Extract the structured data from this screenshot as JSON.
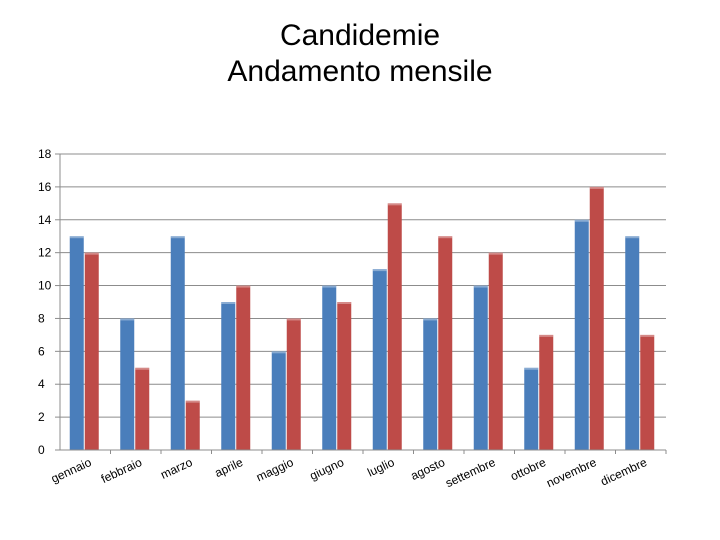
{
  "chart_data": {
    "type": "bar",
    "title": [
      "Candidemie",
      "Andamento mensile"
    ],
    "categories": [
      "gennaio",
      "febbraio",
      "marzo",
      "aprile",
      "maggio",
      "giugno",
      "luglio",
      "agosto",
      "settembre",
      "ottobre",
      "novembre",
      "dicembre"
    ],
    "series": [
      {
        "values": [
          13,
          8,
          13,
          9,
          6,
          10,
          11,
          8,
          10,
          5,
          14,
          13
        ],
        "color": "#4a7ebb"
      },
      {
        "values": [
          12,
          5,
          3,
          10,
          8,
          9,
          15,
          13,
          12,
          7,
          16,
          7
        ],
        "color": "#be4b48"
      }
    ],
    "ylim": [
      0,
      18
    ],
    "yticks": [
      0,
      2,
      4,
      6,
      8,
      10,
      12,
      14,
      16,
      18
    ],
    "grid": true,
    "legend": "none"
  }
}
